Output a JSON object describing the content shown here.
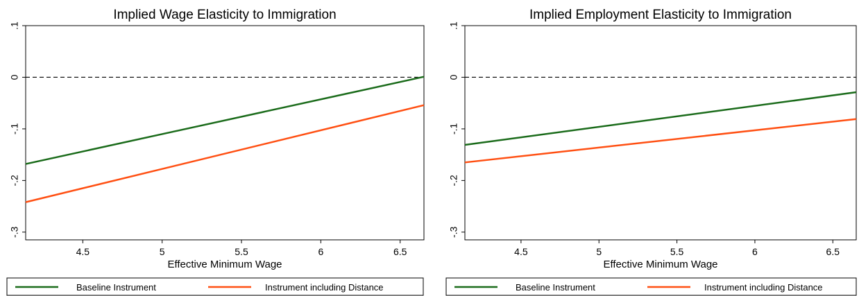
{
  "chart_data": [
    {
      "type": "line",
      "title": "Implied Wage Elasticity to Immigration",
      "xlabel": "Effective Minimum Wage",
      "ylabel": "",
      "xlim": [
        4.14,
        6.65
      ],
      "ylim": [
        -0.315,
        0.1
      ],
      "xticks": [
        4.5,
        5,
        5.5,
        6,
        6.5
      ],
      "xtick_labels": [
        "4.5",
        "5",
        "5.5",
        "6",
        "6.5"
      ],
      "yticks": [
        0.1,
        0,
        -0.1,
        -0.2,
        -0.3
      ],
      "ytick_labels": [
        ".1",
        "0",
        "-.1",
        "-.2",
        "-.3"
      ],
      "reference_line": {
        "y": 0,
        "style": "dashed"
      },
      "grid": false,
      "legend_position": "bottom",
      "series": [
        {
          "name": "Baseline Instrument",
          "color": "#1a6b1a",
          "x": [
            4.14,
            6.65
          ],
          "y": [
            -0.168,
            0.001
          ]
        },
        {
          "name": "Instrument including Distance",
          "color": "#ff4f12",
          "x": [
            4.14,
            6.65
          ],
          "y": [
            -0.242,
            -0.054
          ]
        }
      ]
    },
    {
      "type": "line",
      "title": "Implied Employment Elasticity to Immigration",
      "xlabel": "Effective Minimum Wage",
      "ylabel": "",
      "xlim": [
        4.14,
        6.65
      ],
      "ylim": [
        -0.315,
        0.1
      ],
      "xticks": [
        4.5,
        5,
        5.5,
        6,
        6.5
      ],
      "xtick_labels": [
        "4.5",
        "5",
        "5.5",
        "6",
        "6.5"
      ],
      "yticks": [
        0.1,
        0,
        -0.1,
        -0.2,
        -0.3
      ],
      "ytick_labels": [
        ".1",
        "0",
        "-.1",
        "-.2",
        "-.3"
      ],
      "reference_line": {
        "y": 0,
        "style": "dashed"
      },
      "grid": false,
      "legend_position": "bottom",
      "series": [
        {
          "name": "Baseline Instrument",
          "color": "#1a6b1a",
          "x": [
            4.14,
            6.65
          ],
          "y": [
            -0.131,
            -0.029
          ]
        },
        {
          "name": "Instrument including Distance",
          "color": "#ff4f12",
          "x": [
            4.14,
            6.65
          ],
          "y": [
            -0.165,
            -0.081
          ]
        }
      ]
    }
  ]
}
